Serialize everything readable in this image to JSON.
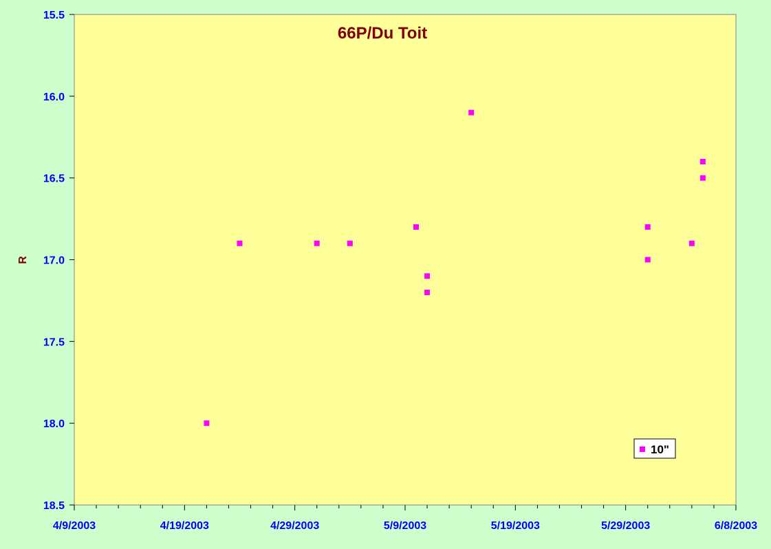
{
  "chart_data": {
    "type": "scatter",
    "title": "66P/Du Toit",
    "xlabel": "",
    "ylabel": "R",
    "x_ticks": [
      "4/9/2003",
      "4/19/2003",
      "4/29/2003",
      "5/9/2003",
      "5/19/2003",
      "5/29/2003",
      "6/8/2003"
    ],
    "y_ticks": [
      "15.5",
      "16.0",
      "16.5",
      "17.0",
      "17.5",
      "18.0",
      "18.5"
    ],
    "xlim": [
      "2003-04-09",
      "2003-06-08"
    ],
    "ylim": [
      15.5,
      18.5
    ],
    "y_inverted": true,
    "grid": false,
    "legend_position": "bottom-right",
    "series": [
      {
        "name": "10\"",
        "color": "#ff00ff",
        "marker": "square",
        "points": [
          {
            "x": "2003-04-21",
            "y": 18.0
          },
          {
            "x": "2003-04-24",
            "y": 16.9
          },
          {
            "x": "2003-05-01",
            "y": 16.9
          },
          {
            "x": "2003-05-04",
            "y": 16.9
          },
          {
            "x": "2003-05-10",
            "y": 16.8
          },
          {
            "x": "2003-05-11",
            "y": 17.1
          },
          {
            "x": "2003-05-11",
            "y": 17.2
          },
          {
            "x": "2003-05-15",
            "y": 16.1
          },
          {
            "x": "2003-05-31",
            "y": 16.8
          },
          {
            "x": "2003-05-31",
            "y": 17.0
          },
          {
            "x": "2003-06-04",
            "y": 16.9
          },
          {
            "x": "2003-06-05",
            "y": 16.4
          },
          {
            "x": "2003-06-05",
            "y": 16.5
          }
        ]
      }
    ]
  },
  "colors": {
    "background": "#ccffcc",
    "plot_area": "#ffff99",
    "title": "#800000",
    "tick_labels": "#0000ff",
    "axis_label": "#800000"
  }
}
